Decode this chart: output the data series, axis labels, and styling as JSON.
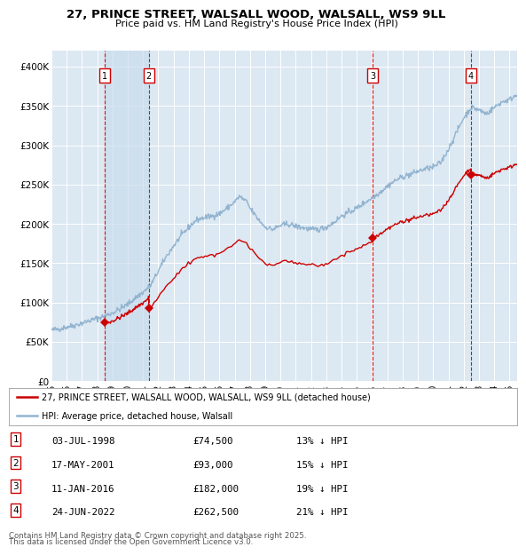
{
  "title_line1": "27, PRINCE STREET, WALSALL WOOD, WALSALL, WS9 9LL",
  "title_line2": "Price paid vs. HM Land Registry's House Price Index (HPI)",
  "ylim": [
    0,
    420000
  ],
  "yticks": [
    0,
    50000,
    100000,
    150000,
    200000,
    250000,
    300000,
    350000,
    400000
  ],
  "ytick_labels": [
    "£0",
    "£50K",
    "£100K",
    "£150K",
    "£200K",
    "£250K",
    "£300K",
    "£350K",
    "£400K"
  ],
  "hpi_color": "#92b4d0",
  "price_color": "#cc0000",
  "background_color": "#ffffff",
  "plot_bg_color": "#dce8f2",
  "grid_color": "#ffffff",
  "shade_color": "#c5d9eb",
  "legend_label_red": "27, PRINCE STREET, WALSALL WOOD, WALSALL, WS9 9LL (detached house)",
  "legend_label_blue": "HPI: Average price, detached house, Walsall",
  "sales": [
    {
      "num": 1,
      "date_label": "03-JUL-1998",
      "date_x": 1998.5,
      "price": 74500,
      "pct": "13%"
    },
    {
      "num": 2,
      "date_label": "17-MAY-2001",
      "date_x": 2001.375,
      "price": 93000,
      "pct": "15%"
    },
    {
      "num": 3,
      "date_label": "11-JAN-2016",
      "date_x": 2016.033,
      "price": 182000,
      "pct": "19%"
    },
    {
      "num": 4,
      "date_label": "24-JUN-2022",
      "date_x": 2022.478,
      "price": 262500,
      "pct": "21%"
    }
  ],
  "footer_line1": "Contains HM Land Registry data © Crown copyright and database right 2025.",
  "footer_line2": "This data is licensed under the Open Government Licence v3.0.",
  "xlim_start": 1995.0,
  "xlim_end": 2025.5
}
